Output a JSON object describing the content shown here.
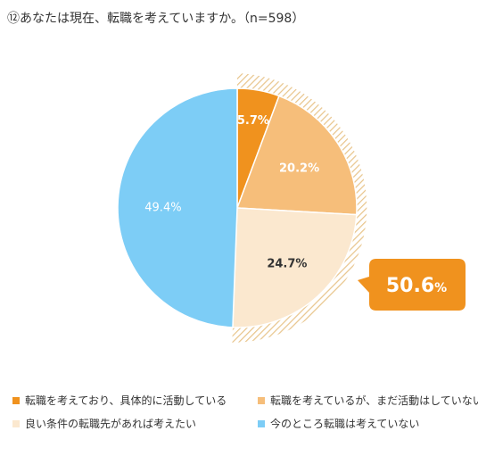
{
  "title": "⑫あなたは現在、転職を考えていますか。（n=598）",
  "chart_data": {
    "type": "pie",
    "slices": [
      {
        "label": "転職を考えており、具体的に活動している",
        "value": 5.7,
        "display": "5.7%",
        "color": "#f0921e",
        "text_color": "#ffffff"
      },
      {
        "label": "転職を考えているが、まだ活動はしていない",
        "value": 20.2,
        "display": "20.2%",
        "color": "#f6be7a",
        "text_color": "#ffffff"
      },
      {
        "label": "良い条件の転職先があれば考えたい",
        "value": 24.7,
        "display": "24.7%",
        "color": "#fbe8cf",
        "text_color": "#333333"
      },
      {
        "label": "今のところ転職は考えていない",
        "value": 49.4,
        "display": "49.4%",
        "color": "#7dcdf6",
        "text_color": "#ffffff"
      }
    ],
    "callout": {
      "number": "50.6",
      "unit": "%",
      "color": "#f0921e"
    },
    "hatch_color": "#e8c48a"
  }
}
